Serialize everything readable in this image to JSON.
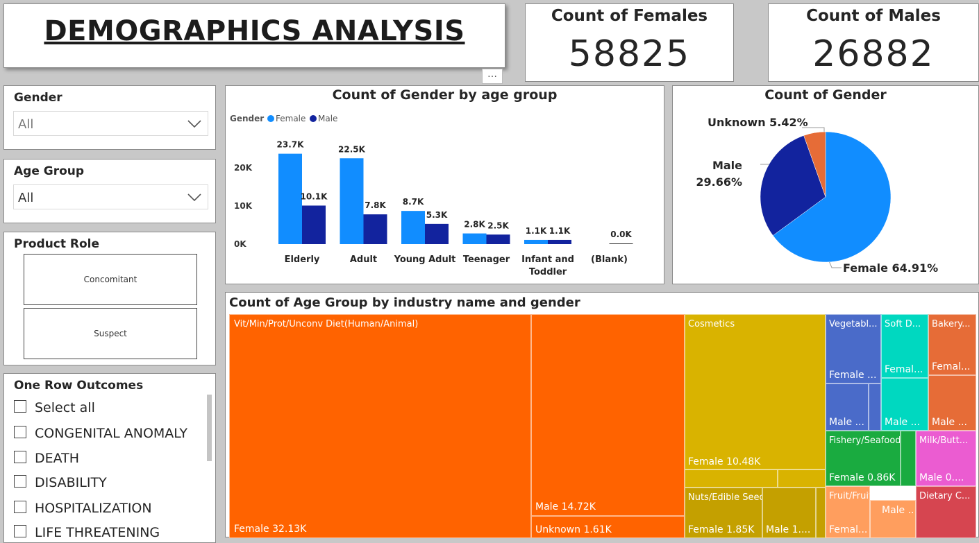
{
  "header": {
    "title": "DEMOGRAPHICS ANALYSIS",
    "more_icon": "…"
  },
  "kpis": [
    {
      "label": "Count of Females",
      "value": "58825"
    },
    {
      "label": "Count of Males",
      "value": "26882"
    }
  ],
  "slicers": {
    "gender": {
      "title": "Gender",
      "value": "All"
    },
    "age_group": {
      "title": "Age Group",
      "value": "All"
    },
    "product_role": {
      "title": "Product Role",
      "options": [
        "Concomitant",
        "Suspect"
      ]
    },
    "outcomes": {
      "title": "One Row Outcomes",
      "items": [
        "Select all",
        "CONGENITAL ANOMALY",
        "DEATH",
        "DISABILITY",
        "HOSPITALIZATION",
        "LIFE THREATENING"
      ]
    }
  },
  "colors": {
    "female": "#118DFF",
    "male": "#12239E",
    "unknown": "#E66C37"
  },
  "bar_chart": {
    "title": "Count of Gender by age group",
    "legend_title": "Gender",
    "legend": [
      "Female",
      "Male"
    ],
    "y_ticks": [
      "20K",
      "10K",
      "0K"
    ]
  },
  "pie_chart": {
    "title": "Count of Gender",
    "labels": [
      "Unknown 5.42%",
      "Male",
      "29.66%",
      "Female 64.91%"
    ]
  },
  "treemap": {
    "title": "Count of Age Group by industry name and gender",
    "labels": {
      "vit": "Vit/Min/Prot/Unconv Diet(Human/Animal)",
      "vit_female": "Female 32.13K",
      "vit_male": "Male 14.72K",
      "vit_unknown": "Unknown 1.61K",
      "cos": "Cosmetics",
      "cos_female": "Female 10.48K",
      "nuts": "Nuts/Edible Seed",
      "nuts_female": "Female 1.85K",
      "nuts_male": "Male 1....",
      "veg": "Vegetabl...",
      "veg_female": "Female ...",
      "veg_male": "Male ...",
      "soft": "Soft D...",
      "soft_female": "Femal...",
      "soft_male": "Male ...",
      "bakery": "Bakery...",
      "bakery_female": "Femal...",
      "bakery_male": "Male ...",
      "fish": "Fishery/Seafood ...",
      "fish_female": "Female 0.86K",
      "milk": "Milk/Butt...",
      "milk_male": "Male 0....",
      "fruit": "Fruit/Fruit Prod",
      "fruit_male": "Male ...",
      "fruit_female": "Femal...",
      "dietary": "Dietary C..."
    }
  },
  "chart_data": [
    {
      "type": "bar",
      "title": "Count of Gender by age group",
      "categories": [
        "Elderly",
        "Adult",
        "Young Adult",
        "Teenager",
        "Infant and Toddler",
        "(Blank)"
      ],
      "series": [
        {
          "name": "Female",
          "values": [
            23700,
            22500,
            8700,
            2800,
            1100,
            0
          ],
          "labels": [
            "23.7K",
            "22.5K",
            "8.7K",
            "2.8K",
            "1.1K",
            ""
          ]
        },
        {
          "name": "Male",
          "values": [
            10100,
            7800,
            5300,
            2500,
            1100,
            0
          ],
          "labels": [
            "10.1K",
            "7.8K",
            "5.3K",
            "2.5K",
            "1.1K",
            "0.0K"
          ]
        }
      ],
      "ylim": [
        0,
        25000
      ],
      "legend": "top-left"
    },
    {
      "type": "pie",
      "title": "Count of Gender",
      "categories": [
        "Female",
        "Male",
        "Unknown"
      ],
      "values": [
        64.91,
        29.66,
        5.42
      ]
    },
    {
      "type": "treemap",
      "title": "Count of Age Group by industry name and gender",
      "groups": [
        {
          "name": "Vit/Min/Prot/Unconv Diet(Human/Animal)",
          "children": [
            {
              "name": "Female",
              "value": 32130
            },
            {
              "name": "Male",
              "value": 14720
            },
            {
              "name": "Unknown",
              "value": 1610
            }
          ]
        },
        {
          "name": "Cosmetics",
          "children": [
            {
              "name": "Female",
              "value": 10480
            }
          ]
        },
        {
          "name": "Nuts/Edible Seed",
          "children": [
            {
              "name": "Female",
              "value": 1850
            }
          ]
        },
        {
          "name": "Fishery/Seafood",
          "children": [
            {
              "name": "Female",
              "value": 860
            }
          ]
        }
      ]
    }
  ]
}
